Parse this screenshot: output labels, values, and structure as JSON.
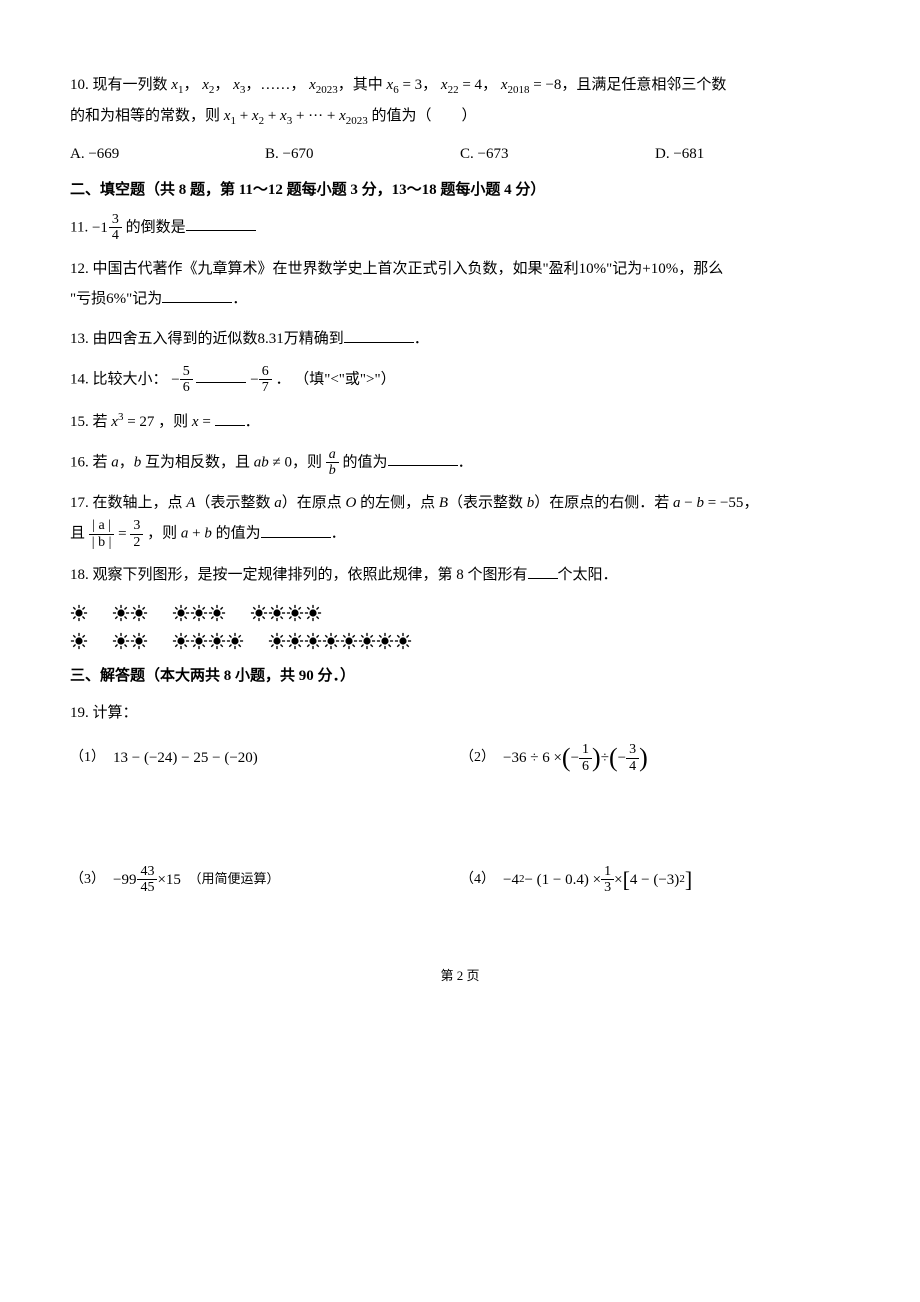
{
  "q10": {
    "prefix": "10. 现有一列数 ",
    "seq_text_1": "，",
    "seq_text_2": "，……，",
    "cond_1": "，其中",
    "cond_eq1a": "x",
    "cond_eq1_sub": "6",
    "cond_eq1b": " = 3",
    "cond_2": "，",
    "cond_eq2a": "x",
    "cond_eq2_sub": "22",
    "cond_eq2b": " = 4",
    "cond_3": "，",
    "cond_eq3a": "x",
    "cond_eq3_sub": "2018",
    "cond_eq3b": " = −8",
    "tail1": "，且满足任意相邻三个数",
    "line2a": "的和为相等的常数，则 ",
    "sum_expr_prefix": "x",
    "sum_s1": "1",
    "sum_plus": " + ",
    "sum_s2": "2",
    "sum_s3": "3",
    "sum_dots": " + ··· + ",
    "sum_s4": "2023",
    "line2b": " 的值为（　　）",
    "options": {
      "A_label": "A.",
      "A_val": "−669",
      "B_label": "B.",
      "B_val": "−670",
      "C_label": "C.",
      "C_val": "−673",
      "D_label": "D.",
      "D_val": "−681"
    }
  },
  "section2": "二、填空题（共 8 题，第 11～12 题每小题 3 分，13～18 题每小题 4 分）",
  "q11": {
    "num": "11. ",
    "neg": "−1",
    "frac_num": "3",
    "frac_den": "4",
    "tail": " 的倒数是"
  },
  "q12": {
    "text1": "12. 中国古代著作《九章算术》在世界数学史上首次正式引入负数，如果\"盈利",
    "pct1": "10%",
    "text2": "\"记为+",
    "pct2": "10%",
    "text3": "，那么",
    "line2a": "\"亏损",
    "pct3": "6%",
    "line2b": "\"记为",
    "period": "．"
  },
  "q13": {
    "text1": "13. 由四舍五入得到的近似数",
    "val": "8.31",
    "text2": "万精确到",
    "period": "．"
  },
  "q14": {
    "label": "14. 比较大小：",
    "neg1": "−",
    "n1": "5",
    "d1": "6",
    "neg2": "−",
    "n2": "6",
    "d2": "7",
    "tail": "．  （填\"<\"或\">\"）"
  },
  "q15": {
    "text1": "15. 若",
    "expr": "x³ = 27",
    "text2": "，则",
    "xeq": "x = ",
    "period": "．"
  },
  "q16": {
    "text1": "16. 若 ",
    "a": "a",
    "text2": "，",
    "b": "b",
    "text3": " 互为相反数，且",
    "cond": "ab ≠ 0",
    "text4": "，则 ",
    "frac_num": "a",
    "frac_den": "b",
    "text5": " 的值为",
    "period": "．"
  },
  "q17": {
    "text1": "17. 在数轴上，点 ",
    "A": "A",
    "text2": "（表示整数 ",
    "a": "a",
    "text3": "）在原点 ",
    "O": "O",
    "text_de": " 的",
    "text4": "左侧，点 ",
    "B": "B",
    "text5": "（表示整数 ",
    "b": "b",
    "text6": "）在原点的右侧．若",
    "eq": "a − b = −55",
    "comma": "，",
    "line2_pre": "且",
    "abs_num": "| a |",
    "abs_den": "| b |",
    "frac_eq": " = ",
    "r_num": "3",
    "r_den": "2",
    "line2_mid": "，则",
    "sum": "a + b",
    "line2_tail": "的值为",
    "period": "．"
  },
  "q18": {
    "text1": "18. 观察下列图形，是按一定规律排列",
    "de": "的",
    "text2": "，依照此规律，第 8 个图形有",
    "text3": "个太阳．"
  },
  "section3": "三、解答题（本大两共 8 小题，共 90 分．）",
  "q19": {
    "header": "19. 计算：",
    "p1_num": "（1）",
    "p1_expr": "13 − (−24) − 25 − (−20)",
    "p2_num": "（2）",
    "p2_a": "−36 ÷ 6 × ",
    "p2_f1n": "1",
    "p2_f1d": "6",
    "p2_mid": " ÷ ",
    "p2_f2n": "3",
    "p2_f2d": "4",
    "p3_num": "（3）",
    "p3_neg": "−99",
    "p3_fn": "43",
    "p3_fd": "45",
    "p3_tail": "×15",
    "p3_note": "（用简便运算）",
    "p4_num": "（4）",
    "p4_a": "−4² − (1 − 0.4) × ",
    "p4_fn": "1",
    "p4_fd": "3",
    "p4_b": " × ",
    "p4_br": "4 − (−3)²"
  },
  "page_num": "第 2 页",
  "suns": {
    "row1": [
      1,
      2,
      3,
      4
    ],
    "row2": [
      1,
      2,
      4,
      8
    ]
  },
  "colors": {
    "text": "#000000",
    "bg": "#ffffff"
  }
}
